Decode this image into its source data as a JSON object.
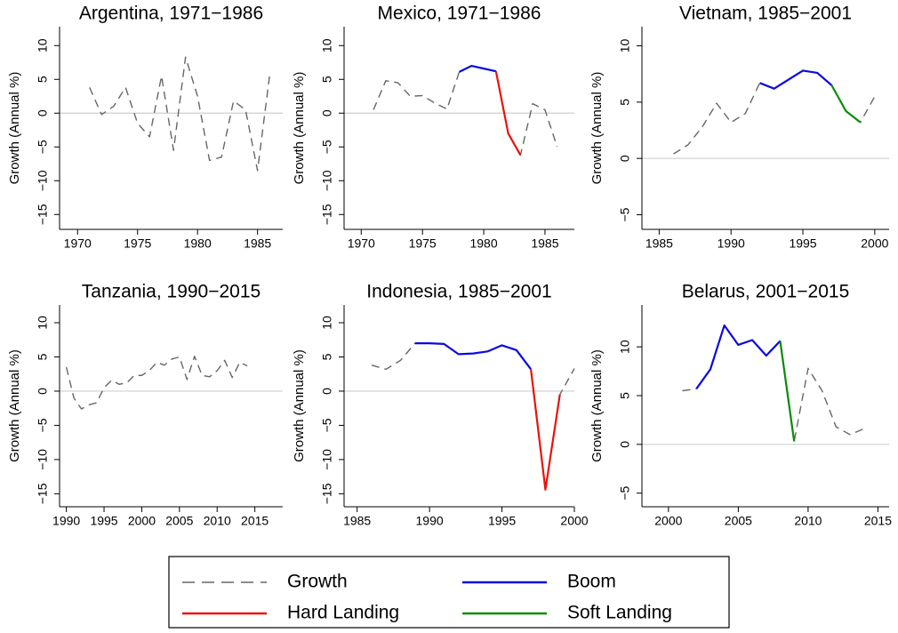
{
  "chart_data": [
    {
      "type": "line",
      "title": "Argentina, 1971−1986",
      "ylabel": "Growth (Annual %)",
      "x": [
        1971,
        1972,
        1973,
        1974,
        1975,
        1976,
        1977,
        1978,
        1979,
        1980,
        1981,
        1982,
        1983,
        1984,
        1985,
        1986
      ],
      "series": [
        {
          "name": "Growth",
          "color": "#666666",
          "dashed": true,
          "values": [
            3.8,
            -0.2,
            1.0,
            3.8,
            -1.5,
            -3.5,
            5.5,
            -5.5,
            8.3,
            2.5,
            -7.0,
            -6.5,
            1.8,
            0.5,
            -8.5,
            5.5
          ]
        }
      ],
      "xlim": [
        1968.5,
        1987.1
      ],
      "ylim": [
        -17.2,
        12.8
      ],
      "xticks": [
        1970,
        1975,
        1980,
        1985
      ],
      "yticks": [
        {
          "value": -15,
          "label": "−15"
        },
        {
          "value": -10,
          "label": "−10"
        },
        {
          "value": -5,
          "label": "−5"
        },
        0,
        5,
        10
      ],
      "zero_line": true
    },
    {
      "type": "line",
      "title": "Mexico, 1971−1986",
      "ylabel": "Growth (Annual %)",
      "x": [
        1971,
        1972,
        1973,
        1974,
        1975,
        1976,
        1977,
        1978,
        1979,
        1980,
        1981,
        1982,
        1983,
        1984,
        1985,
        1986
      ],
      "series": [
        {
          "name": "Growth",
          "color": "#666666",
          "dashed": true,
          "values": [
            0.5,
            4.8,
            4.5,
            2.5,
            2.6,
            1.5,
            0.6,
            6.1,
            7.0,
            6.6,
            6.2,
            -3.0,
            -6.2,
            1.4,
            0.5,
            -5.0
          ]
        },
        {
          "name": "Boom",
          "color": "#0a0ae0",
          "dashed": false,
          "values": [
            null,
            null,
            null,
            null,
            null,
            null,
            null,
            6.1,
            7.0,
            6.6,
            6.2,
            null,
            null,
            null,
            null,
            null
          ]
        },
        {
          "name": "Hard Landing",
          "color": "#e8120c",
          "dashed": false,
          "values": [
            null,
            null,
            null,
            null,
            null,
            null,
            null,
            null,
            null,
            null,
            6.2,
            -3.0,
            -6.2,
            null,
            null,
            null
          ]
        }
      ],
      "xlim": [
        1968.6,
        1987.4
      ],
      "ylim": [
        -17.2,
        12.8
      ],
      "xticks": [
        1970,
        1975,
        1980,
        1985
      ],
      "yticks": [
        {
          "value": -15,
          "label": "−15"
        },
        {
          "value": -10,
          "label": "−10"
        },
        {
          "value": -5,
          "label": "−5"
        },
        0,
        5,
        10
      ],
      "zero_line": true
    },
    {
      "type": "line",
      "title": "Vietnam, 1985−2001",
      "ylabel": "Growth (Annual %)",
      "x": [
        1986,
        1987,
        1988,
        1989,
        1990,
        1991,
        1992,
        1993,
        1994,
        1995,
        1996,
        1997,
        1998,
        1999,
        2000
      ],
      "series": [
        {
          "name": "Growth",
          "color": "#666666",
          "dashed": true,
          "values": [
            0.4,
            1.2,
            2.8,
            4.9,
            3.2,
            4.0,
            6.7,
            6.2,
            7.0,
            7.8,
            7.6,
            6.5,
            4.2,
            3.2,
            5.5
          ]
        },
        {
          "name": "Boom",
          "color": "#0a0ae0",
          "dashed": false,
          "values": [
            null,
            null,
            null,
            null,
            null,
            null,
            6.7,
            6.2,
            7.0,
            7.8,
            7.6,
            6.5,
            null,
            null,
            null
          ]
        },
        {
          "name": "Soft Landing",
          "color": "#0a8a0a",
          "dashed": false,
          "values": [
            null,
            null,
            null,
            null,
            null,
            null,
            null,
            null,
            null,
            null,
            null,
            6.5,
            4.2,
            3.2,
            null
          ]
        }
      ],
      "xlim": [
        1983.8,
        2001.0
      ],
      "ylim": [
        -6.3,
        11.7
      ],
      "xticks": [
        1985,
        1990,
        1995,
        2000
      ],
      "yticks": [
        {
          "value": -5,
          "label": "−5"
        },
        0,
        5,
        10
      ],
      "zero_line": true
    },
    {
      "type": "line",
      "title": "Tanzania, 1990−2015",
      "ylabel": "Growth (Annual %)",
      "x": [
        1990,
        1991,
        1992,
        1993,
        1994,
        1995,
        1996,
        1997,
        1998,
        1999,
        2000,
        2001,
        2002,
        2003,
        2004,
        2005,
        2006,
        2007,
        2008,
        2009,
        2010,
        2011,
        2012,
        2013,
        2014
      ],
      "series": [
        {
          "name": "Growth",
          "color": "#666666",
          "dashed": true,
          "values": [
            3.5,
            -1.0,
            -2.6,
            -2.0,
            -1.7,
            0.5,
            1.6,
            1.0,
            1.2,
            2.3,
            2.3,
            3.0,
            4.2,
            3.8,
            4.7,
            5.0,
            1.7,
            5.1,
            2.3,
            2.1,
            3.0,
            4.5,
            2.0,
            4.2,
            3.7
          ]
        }
      ],
      "xlim": [
        1989.1,
        2018.7
      ],
      "ylim": [
        -16.9,
        12.6
      ],
      "xticks": [
        1990,
        1995,
        2000,
        2005,
        2010,
        2015
      ],
      "yticks": [
        {
          "value": -15,
          "label": "−15"
        },
        {
          "value": -10,
          "label": "−10"
        },
        {
          "value": -5,
          "label": "−5"
        },
        0,
        5,
        10
      ],
      "zero_line": true
    },
    {
      "type": "line",
      "title": "Indonesia, 1985−2001",
      "ylabel": "Growth (Annual %)",
      "x": [
        1986,
        1987,
        1988,
        1989,
        1990,
        1991,
        1992,
        1993,
        1994,
        1995,
        1996,
        1997,
        1998,
        1999,
        2000
      ],
      "series": [
        {
          "name": "Growth",
          "color": "#666666",
          "dashed": true,
          "values": [
            3.8,
            3.2,
            4.5,
            7.0,
            7.0,
            6.9,
            5.4,
            5.5,
            5.8,
            6.7,
            6.0,
            3.2,
            -14.4,
            -0.5,
            3.3
          ]
        },
        {
          "name": "Boom",
          "color": "#0a0ae0",
          "dashed": false,
          "values": [
            null,
            null,
            null,
            7.0,
            7.0,
            6.9,
            5.4,
            5.5,
            5.8,
            6.7,
            6.0,
            3.2,
            null,
            null,
            null
          ]
        },
        {
          "name": "Hard Landing",
          "color": "#e8120c",
          "dashed": false,
          "values": [
            null,
            null,
            null,
            null,
            null,
            null,
            null,
            null,
            null,
            null,
            null,
            3.2,
            -14.4,
            -0.5,
            null
          ]
        }
      ],
      "xlim": [
        1984.1,
        2000.0
      ],
      "ylim": [
        -16.9,
        12.6
      ],
      "xticks": [
        1985,
        1990,
        1995,
        2000
      ],
      "yticks": [
        {
          "value": -15,
          "label": "−15"
        },
        {
          "value": -10,
          "label": "−10"
        },
        {
          "value": -5,
          "label": "−5"
        },
        0,
        5,
        10
      ],
      "zero_line": true
    },
    {
      "type": "line",
      "title": "Belarus, 2001−2015",
      "ylabel": "Growth (Annual %)",
      "x": [
        2001,
        2002,
        2003,
        2004,
        2005,
        2006,
        2007,
        2008,
        2009,
        2010,
        2011,
        2012,
        2013,
        2014
      ],
      "series": [
        {
          "name": "Growth",
          "color": "#666666",
          "dashed": true,
          "values": [
            5.5,
            5.7,
            7.7,
            12.2,
            10.2,
            10.7,
            9.1,
            10.6,
            0.3,
            7.8,
            5.5,
            1.8,
            1.0,
            1.6
          ]
        },
        {
          "name": "Boom",
          "color": "#0a0ae0",
          "dashed": false,
          "values": [
            null,
            5.7,
            7.7,
            12.2,
            10.2,
            10.7,
            9.1,
            10.6,
            null,
            null,
            null,
            null,
            null,
            null
          ]
        },
        {
          "name": "Soft Landing",
          "color": "#0a8a0a",
          "dashed": false,
          "values": [
            null,
            null,
            null,
            null,
            null,
            null,
            null,
            10.6,
            0.3,
            null,
            null,
            null,
            null,
            null
          ]
        }
      ],
      "xlim": [
        1998.1,
        2015.8
      ],
      "ylim": [
        -6.4,
        14.3
      ],
      "xticks": [
        2000,
        2005,
        2010,
        2015
      ],
      "yticks": [
        {
          "value": -5,
          "label": "−5"
        },
        0,
        5,
        10
      ],
      "zero_line": true
    }
  ],
  "legend": {
    "entries": [
      {
        "name": "Growth",
        "color": "#666666",
        "dashed": true
      },
      {
        "name": "Boom",
        "color": "#0a0ae0",
        "dashed": false
      },
      {
        "name": "Hard Landing",
        "color": "#e8120c",
        "dashed": false
      },
      {
        "name": "Soft Landing",
        "color": "#0a8a0a",
        "dashed": false
      }
    ]
  }
}
